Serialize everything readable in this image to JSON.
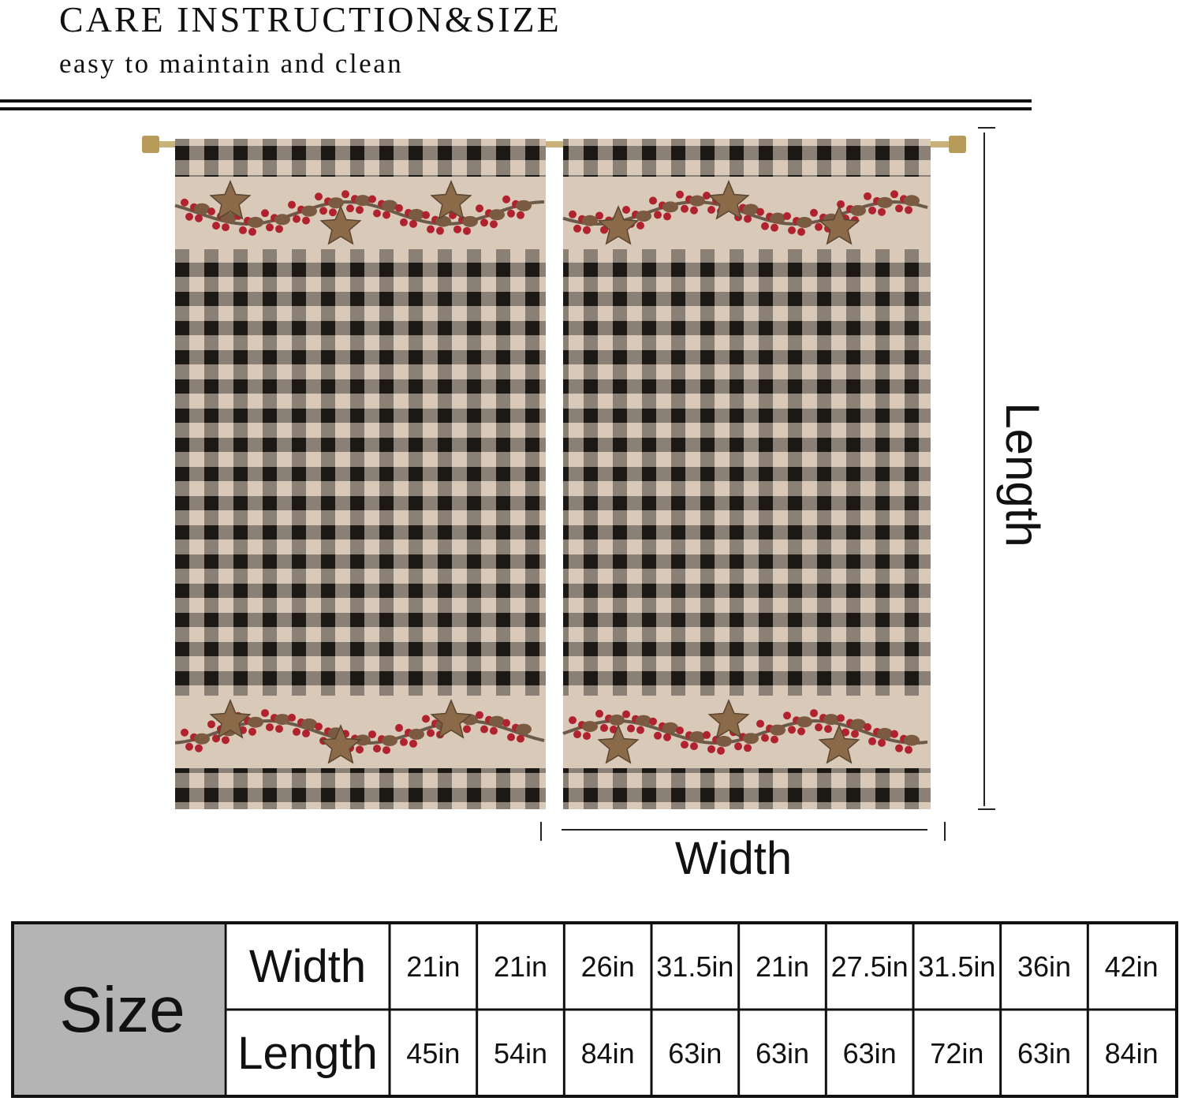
{
  "header": {
    "title": "CARE INSTRUCTION&SIZE",
    "subtitle": "easy to maintain and clean"
  },
  "diagram": {
    "length_label": "Length",
    "width_label": "Width"
  },
  "table": {
    "corner": "Size",
    "row_labels": [
      "Width",
      "Length"
    ],
    "rows": [
      [
        "21in",
        "21in",
        "26in",
        "31.5in",
        "21in",
        "27.5in",
        "31.5in",
        "36in",
        "42in"
      ],
      [
        "45in",
        "54in",
        "84in",
        "63in",
        "63in",
        "63in",
        "72in",
        "63in",
        "84in"
      ]
    ]
  }
}
